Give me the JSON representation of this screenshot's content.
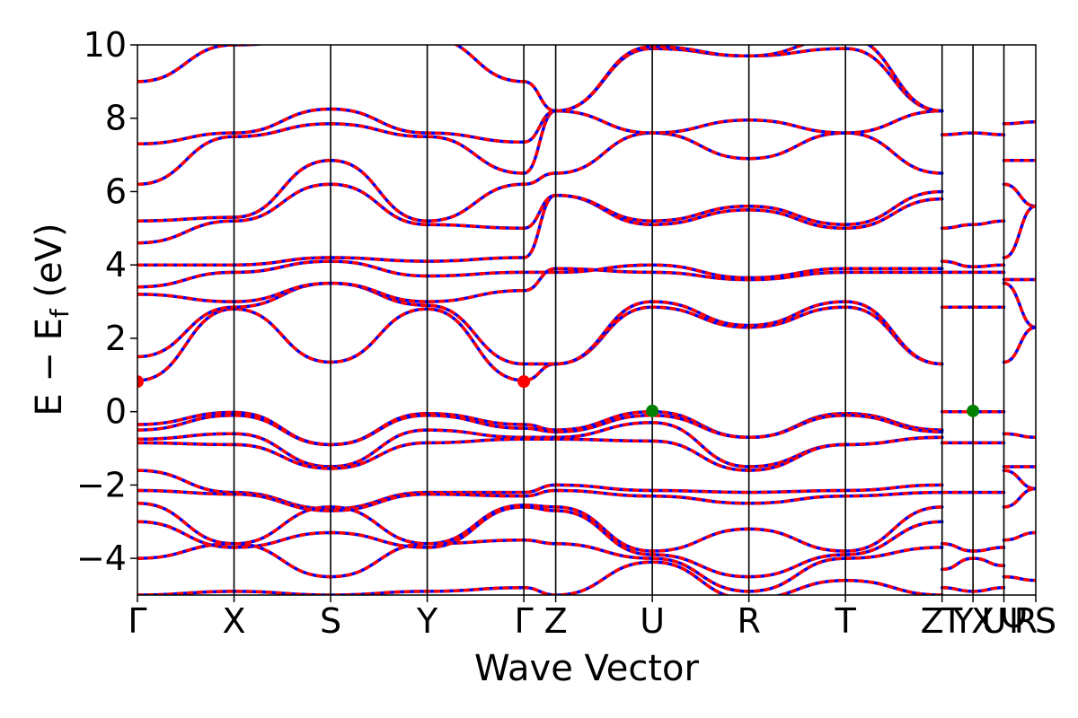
{
  "chart_data": {
    "type": "line",
    "title": "",
    "xlabel": "Wave Vector",
    "ylabel_main": "E − E",
    "ylabel_sub": "f",
    "ylabel_unit": " (eV)",
    "ylim": [
      -5,
      10
    ],
    "y_ticks": [
      {
        "value": 10,
        "label": "10"
      },
      {
        "value": 8,
        "label": "8"
      },
      {
        "value": 6,
        "label": "6"
      },
      {
        "value": 4,
        "label": "4"
      },
      {
        "value": 2,
        "label": "2"
      },
      {
        "value": 0,
        "label": "0"
      },
      {
        "value": -2,
        "label": "−2"
      },
      {
        "value": -4,
        "label": "−4"
      }
    ],
    "kpath_labels": [
      "Γ",
      "X",
      "S",
      "Y",
      "Γ",
      "Z",
      "U",
      "R",
      "T",
      "Z",
      "T",
      "Y",
      "X",
      "U",
      "Ψ",
      "R",
      "S"
    ],
    "kpath_positions": [
      0,
      1,
      2,
      3,
      4,
      4.33,
      5.33,
      6.33,
      7.33,
      8.33,
      8.33,
      8.65,
      8.65,
      8.97,
      8.97,
      9.3,
      9.3
    ],
    "vertical_lines_at": [
      1,
      2,
      3,
      4,
      4.33,
      5.33,
      6.33,
      7.33,
      8.33,
      8.65,
      8.97
    ],
    "xlim": [
      0,
      9.3
    ],
    "spin_colors": {
      "up": "#0000ff",
      "down": "#ff0000"
    },
    "markers": [
      {
        "name": "CBM",
        "x": 0,
        "y": 0.82,
        "color": "#ff0000"
      },
      {
        "name": "CBM",
        "x": 4,
        "y": 0.82,
        "color": "#ff0000"
      },
      {
        "name": "VBM",
        "x": 5.33,
        "y": 0.02,
        "color": "#008000"
      },
      {
        "name": "VBM",
        "x": 8.65,
        "y": 0.02,
        "color": "#008000"
      }
    ],
    "bands": [
      {
        "x": [
          0,
          1,
          2,
          3,
          4,
          4.33,
          5.33,
          6.33,
          7.33,
          8.33
        ],
        "y": [
          0.85,
          2.8,
          1.35,
          2.8,
          0.85,
          1.3,
          2.85,
          2.3,
          2.85,
          1.3
        ]
      },
      {
        "x": [
          0,
          1,
          2,
          3,
          4,
          4.33,
          5.33,
          6.33,
          7.33,
          8.33
        ],
        "y": [
          1.5,
          2.85,
          3.5,
          2.9,
          1.3,
          1.3,
          3.0,
          2.35,
          3.0,
          1.3
        ]
      },
      {
        "x": [
          0,
          1,
          2,
          3,
          4,
          4.33,
          5.33,
          6.33,
          7.33,
          8.33
        ],
        "y": [
          3.2,
          3.0,
          3.5,
          3.0,
          3.3,
          3.9,
          3.8,
          3.6,
          3.8,
          3.8
        ]
      },
      {
        "x": [
          0,
          1,
          2,
          3,
          4,
          4.33,
          5.33,
          6.33,
          7.33,
          8.33
        ],
        "y": [
          3.4,
          3.8,
          4.1,
          3.7,
          3.8,
          3.8,
          4.0,
          3.65,
          3.9,
          3.9
        ]
      },
      {
        "x": [
          0,
          1,
          2,
          3,
          4,
          4.33,
          5.33,
          6.33,
          7.33,
          8.33
        ],
        "y": [
          4.0,
          4.0,
          4.2,
          4.1,
          4.2,
          5.9,
          5.1,
          5.5,
          5.0,
          5.8
        ]
      },
      {
        "x": [
          0,
          1,
          2,
          3,
          4,
          4.33,
          5.33,
          6.33,
          7.33,
          8.33
        ],
        "y": [
          4.6,
          5.2,
          6.2,
          5.1,
          5.0,
          5.9,
          5.2,
          5.6,
          5.1,
          6.0
        ]
      },
      {
        "x": [
          0,
          1,
          2,
          3,
          4,
          4.33,
          5.33,
          6.33,
          7.33,
          8.33
        ],
        "y": [
          5.2,
          5.3,
          6.85,
          5.2,
          6.2,
          6.5,
          7.6,
          6.9,
          7.6,
          6.5
        ]
      },
      {
        "x": [
          0,
          1,
          2,
          3,
          4,
          4.33,
          5.33,
          6.33,
          7.33,
          8.33
        ],
        "y": [
          6.2,
          7.5,
          7.85,
          7.5,
          6.5,
          8.2,
          7.6,
          7.95,
          7.6,
          8.2
        ]
      },
      {
        "x": [
          0,
          1,
          2,
          3,
          4,
          4.33,
          5.33,
          6.33,
          7.33,
          8.33
        ],
        "y": [
          7.3,
          7.6,
          8.25,
          7.6,
          7.35,
          8.2,
          9.9,
          9.7,
          9.9,
          8.2
        ]
      },
      {
        "x": [
          0,
          1,
          2,
          3,
          4,
          4.33,
          5.33,
          6.33,
          7.33,
          8.33
        ],
        "y": [
          9.0,
          10.0,
          10.2,
          10.2,
          9.0,
          8.2,
          9.95,
          9.7,
          10.2,
          8.2
        ]
      },
      {
        "x": [
          0,
          1,
          2,
          3,
          4,
          4.33,
          5.33,
          6.33,
          7.33,
          8.33
        ],
        "y": [
          -0.35,
          -0.02,
          -0.9,
          -0.05,
          -0.35,
          -0.5,
          0.0,
          -0.7,
          -0.05,
          -0.5
        ]
      },
      {
        "x": [
          0,
          1,
          2,
          3,
          4,
          4.33,
          5.33,
          6.33,
          7.33,
          8.33
        ],
        "y": [
          -0.5,
          -0.1,
          -0.9,
          -0.1,
          -0.45,
          -0.55,
          -0.1,
          -0.7,
          -0.1,
          -0.55
        ]
      },
      {
        "x": [
          0,
          1,
          2,
          3,
          4,
          4.33,
          5.33,
          6.33,
          7.33,
          8.33
        ],
        "y": [
          -0.75,
          -0.6,
          -1.5,
          -0.5,
          -0.7,
          -0.7,
          -0.3,
          -1.5,
          -0.9,
          -0.7
        ]
      },
      {
        "x": [
          0,
          1,
          2,
          3,
          4,
          4.33,
          5.33,
          6.33,
          7.33,
          8.33
        ],
        "y": [
          -0.85,
          -0.9,
          -1.55,
          -0.85,
          -0.75,
          -0.75,
          -0.8,
          -1.6,
          -0.9,
          -0.7
        ]
      },
      {
        "x": [
          0,
          1,
          2,
          3,
          4,
          4.33,
          5.33,
          6.33,
          7.33,
          8.33
        ],
        "y": [
          -1.6,
          -2.2,
          -2.65,
          -2.2,
          -2.2,
          -2.0,
          -2.15,
          -2.2,
          -2.15,
          -2.0
        ]
      },
      {
        "x": [
          0,
          1,
          2,
          3,
          4,
          4.33,
          5.33,
          6.33,
          7.33,
          8.33
        ],
        "y": [
          -2.15,
          -2.25,
          -2.7,
          -2.25,
          -2.3,
          -2.15,
          -2.3,
          -2.5,
          -2.3,
          -2.2
        ]
      },
      {
        "x": [
          0,
          1,
          2,
          3,
          4,
          4.33,
          5.33,
          6.33,
          7.33,
          8.33
        ],
        "y": [
          -2.5,
          -3.6,
          -2.6,
          -3.6,
          -2.55,
          -2.6,
          -3.8,
          -3.2,
          -3.8,
          -2.6
        ]
      },
      {
        "x": [
          0,
          1,
          2,
          3,
          4,
          4.33,
          5.33,
          6.33,
          7.33,
          8.33
        ],
        "y": [
          -3.0,
          -3.7,
          -3.3,
          -3.7,
          -2.6,
          -2.7,
          -3.9,
          -4.5,
          -3.9,
          -3.0
        ]
      },
      {
        "x": [
          0,
          1,
          2,
          3,
          4,
          4.33,
          5.33,
          6.33,
          7.33,
          8.33
        ],
        "y": [
          -4.0,
          -3.6,
          -4.5,
          -3.6,
          -3.5,
          -3.6,
          -4.0,
          -4.9,
          -4.0,
          -3.7
        ]
      },
      {
        "x": [
          0,
          1,
          2,
          3,
          4,
          4.33,
          5.33,
          6.33,
          7.33,
          8.33
        ],
        "y": [
          -5.0,
          -4.9,
          -5.0,
          -4.9,
          -4.8,
          -5.0,
          -4.1,
          -5.1,
          -4.6,
          -5.0
        ]
      },
      {
        "x": [
          8.33,
          8.65,
          8.97
        ],
        "y": [
          7.55,
          7.6,
          7.55
        ]
      },
      {
        "x": [
          8.33,
          8.65,
          8.97
        ],
        "y": [
          5.0,
          5.1,
          5.2
        ]
      },
      {
        "x": [
          8.33,
          8.65,
          8.97
        ],
        "y": [
          4.1,
          3.95,
          4.0
        ]
      },
      {
        "x": [
          8.33,
          8.65,
          8.97
        ],
        "y": [
          3.8,
          3.8,
          3.8
        ]
      },
      {
        "x": [
          8.33,
          8.65,
          8.97
        ],
        "y": [
          2.85,
          2.85,
          2.85
        ]
      },
      {
        "x": [
          8.33,
          8.65,
          8.97
        ],
        "y": [
          0.0,
          0.0,
          0.0
        ]
      },
      {
        "x": [
          8.33,
          8.65,
          8.97
        ],
        "y": [
          -0.85,
          -0.85,
          -0.85
        ]
      },
      {
        "x": [
          8.33,
          8.65,
          8.97
        ],
        "y": [
          -2.2,
          -2.2,
          -2.2
        ]
      },
      {
        "x": [
          8.33,
          8.65,
          8.97
        ],
        "y": [
          -3.6,
          -3.8,
          -3.7
        ]
      },
      {
        "x": [
          8.33,
          8.65,
          8.97
        ],
        "y": [
          -4.3,
          -4.0,
          -4.2
        ]
      },
      {
        "x": [
          8.33,
          8.65,
          8.97
        ],
        "y": [
          -4.8,
          -4.9,
          -4.8
        ]
      },
      {
        "x": [
          8.97,
          9.3
        ],
        "y": [
          7.85,
          7.9
        ]
      },
      {
        "x": [
          8.97,
          9.3
        ],
        "y": [
          6.85,
          6.85
        ]
      },
      {
        "x": [
          8.97,
          9.3
        ],
        "y": [
          6.2,
          5.6
        ]
      },
      {
        "x": [
          8.97,
          9.3
        ],
        "y": [
          4.2,
          5.6
        ]
      },
      {
        "x": [
          8.97,
          9.3
        ],
        "y": [
          3.6,
          3.6
        ]
      },
      {
        "x": [
          8.97,
          9.3
        ],
        "y": [
          3.5,
          2.3
        ]
      },
      {
        "x": [
          8.97,
          9.3
        ],
        "y": [
          1.35,
          2.3
        ]
      },
      {
        "x": [
          8.97,
          9.3
        ],
        "y": [
          -0.6,
          -0.7
        ]
      },
      {
        "x": [
          8.97,
          9.3
        ],
        "y": [
          -1.5,
          -1.5
        ]
      },
      {
        "x": [
          8.97,
          9.3
        ],
        "y": [
          -1.6,
          -2.1
        ]
      },
      {
        "x": [
          8.97,
          9.3
        ],
        "y": [
          -2.6,
          -2.1
        ]
      },
      {
        "x": [
          8.97,
          9.3
        ],
        "y": [
          -3.5,
          -3.3
        ]
      },
      {
        "x": [
          8.97,
          9.3
        ],
        "y": [
          -4.5,
          -4.6
        ]
      }
    ]
  }
}
